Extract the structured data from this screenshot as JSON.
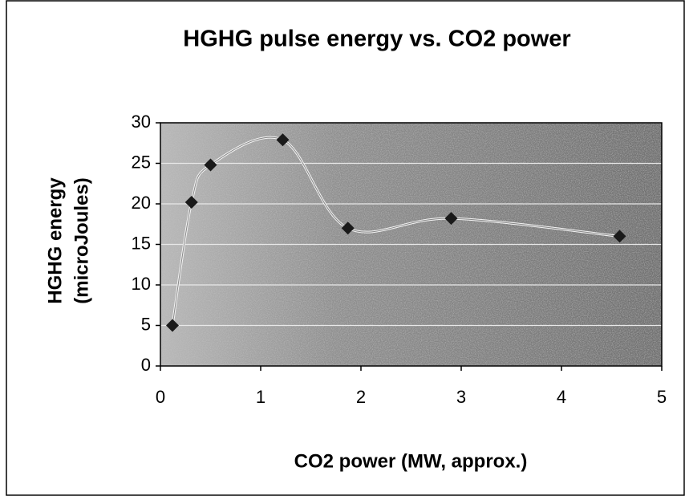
{
  "chart_data": {
    "type": "line",
    "title": "HGHG pulse energy vs. CO2 power",
    "xlabel": "CO2 power (MW, approx.)",
    "ylabel": [
      "HGHG energy",
      "(microJoules)"
    ],
    "x": [
      0.12,
      0.31,
      0.5,
      1.22,
      1.87,
      2.9,
      4.58
    ],
    "series": [
      {
        "name": "HGHG energy",
        "color": "#1a1a1a",
        "values": [
          5,
          20.2,
          24.8,
          27.9,
          17,
          18.2,
          16
        ]
      }
    ],
    "xlim": [
      0,
      5
    ],
    "xticks": [
      0,
      1,
      2,
      3,
      4,
      5
    ],
    "ylim": [
      0,
      30
    ],
    "yticks": [
      0,
      5,
      10,
      15,
      20,
      25,
      30
    ],
    "grid": true
  }
}
